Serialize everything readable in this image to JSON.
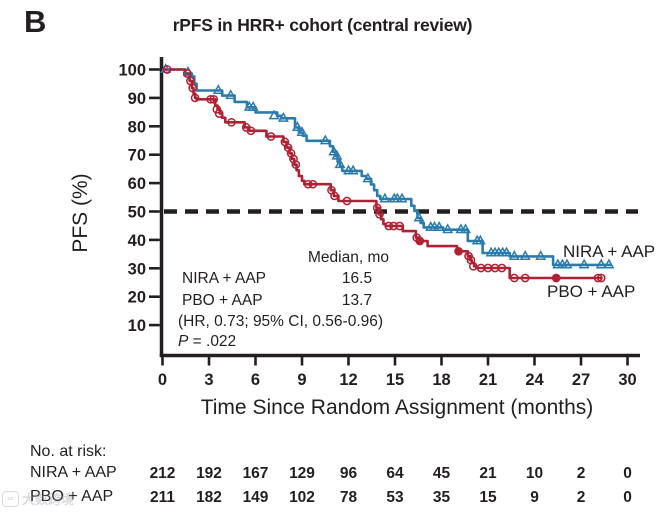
{
  "panel_label": "B",
  "title": "rPFS in HRR+ cohort (central review)",
  "watermark": {
    "icon": "infinity-logo-icon",
    "text": "大数跨境"
  },
  "colors": {
    "nira": "#2B7CAE",
    "pbo": "#AE2233",
    "axis": "#231F20",
    "background": "#FFFFFF"
  },
  "chart_data": {
    "type": "line",
    "subtype": "kaplan-meier-step",
    "title": "rPFS in HRR+ cohort (central review)",
    "xlabel": "Time Since Random Assignment (months)",
    "ylabel": "PFS (%)",
    "xlim": [
      0,
      30
    ],
    "ylim": [
      0,
      100
    ],
    "xticks": [
      0,
      3,
      6,
      9,
      12,
      15,
      18,
      21,
      24,
      27,
      30
    ],
    "yticks": [
      10,
      20,
      30,
      40,
      50,
      60,
      70,
      80,
      90,
      100
    ],
    "grid": false,
    "legend_position": "curve-end-labels",
    "reference_line": {
      "y": 50,
      "style": "dashed",
      "color": "#231F20"
    },
    "annotation": {
      "header": "Median, mo",
      "rows": [
        {
          "label": "NIRA + AAP",
          "value": "16.5"
        },
        {
          "label": "PBO + AAP",
          "value": "13.7"
        }
      ],
      "hr_line": "(HR, 0.73; 95% CI, 0.56-0.96)",
      "p_label": "P",
      "p_value": " = .022"
    },
    "series": [
      {
        "name": "NIRA + AAP",
        "color": "#2B7CAE",
        "marker": "open-triangle",
        "median_months": 16.5,
        "end_month": 29.0,
        "steps": [
          [
            0,
            100
          ],
          [
            1.45,
            98.6
          ],
          [
            1.9,
            97.5
          ],
          [
            2.05,
            95
          ],
          [
            2.2,
            92.6
          ],
          [
            3.85,
            90.8
          ],
          [
            4.65,
            88.6
          ],
          [
            5.45,
            86.7
          ],
          [
            6.0,
            84.9
          ],
          [
            7.4,
            83.7
          ],
          [
            7.65,
            82.8
          ],
          [
            8.55,
            79.6
          ],
          [
            8.8,
            77.8
          ],
          [
            9.05,
            76.7
          ],
          [
            9.3,
            74.9
          ],
          [
            10.8,
            73
          ],
          [
            11.0,
            71
          ],
          [
            11.15,
            69.5
          ],
          [
            11.3,
            67.5
          ],
          [
            11.45,
            65.8
          ],
          [
            11.6,
            64.3
          ],
          [
            12.85,
            62.5
          ],
          [
            13.15,
            61.5
          ],
          [
            13.45,
            59.5
          ],
          [
            13.65,
            57.5
          ],
          [
            13.85,
            55.5
          ],
          [
            14.05,
            54.4
          ],
          [
            16.05,
            52
          ],
          [
            16.25,
            50.2
          ],
          [
            16.45,
            47.7
          ],
          [
            16.65,
            46
          ],
          [
            16.85,
            44.4
          ],
          [
            18.1,
            43.6
          ],
          [
            19.7,
            39.6
          ],
          [
            20.65,
            35.4
          ],
          [
            22.4,
            34.2
          ],
          [
            25.2,
            31.2
          ]
        ],
        "censor_marks": [
          [
            0.2,
            100
          ],
          [
            1.65,
            99
          ],
          [
            3.6,
            92.6
          ],
          [
            4.4,
            90.8
          ],
          [
            5.6,
            86.7
          ],
          [
            5.85,
            86.7
          ],
          [
            7.2,
            83.7
          ],
          [
            7.8,
            82.8
          ],
          [
            8.7,
            79.6
          ],
          [
            9.0,
            77.8
          ],
          [
            10.5,
            74.9
          ],
          [
            11.05,
            71
          ],
          [
            11.25,
            69.5
          ],
          [
            11.45,
            66.5
          ],
          [
            12.0,
            64.3
          ],
          [
            12.3,
            64.3
          ],
          [
            13.25,
            61.5
          ],
          [
            14.35,
            54.4
          ],
          [
            14.95,
            54.4
          ],
          [
            15.15,
            54.4
          ],
          [
            15.45,
            54.4
          ],
          [
            16.55,
            47.7
          ],
          [
            17.3,
            44.4
          ],
          [
            17.55,
            44.4
          ],
          [
            17.85,
            44.4
          ],
          [
            18.4,
            43.6
          ],
          [
            19.25,
            43.6
          ],
          [
            19.55,
            43.6
          ],
          [
            20.3,
            39.6
          ],
          [
            20.5,
            39.6
          ],
          [
            21.2,
            35.4
          ],
          [
            21.45,
            35.4
          ],
          [
            21.7,
            35.4
          ],
          [
            21.95,
            35.4
          ],
          [
            22.2,
            35.4
          ],
          [
            22.7,
            34.2
          ],
          [
            23.4,
            34.2
          ],
          [
            24.4,
            34.2
          ],
          [
            25.5,
            31.2
          ],
          [
            25.8,
            31.2
          ],
          [
            26.1,
            31.2
          ],
          [
            27.2,
            31.2
          ],
          [
            28.3,
            31.2
          ],
          [
            28.8,
            31.2
          ]
        ]
      },
      {
        "name": "PBO + AAP",
        "color": "#AE2233",
        "marker": "open-circle",
        "median_months": 13.7,
        "end_month": 28.4,
        "steps": [
          [
            0,
            100
          ],
          [
            1.45,
            98.6
          ],
          [
            1.75,
            96
          ],
          [
            1.9,
            93.5
          ],
          [
            2.0,
            91.5
          ],
          [
            2.1,
            90
          ],
          [
            2.2,
            89.5
          ],
          [
            3.4,
            87.3
          ],
          [
            3.55,
            86
          ],
          [
            3.7,
            84.5
          ],
          [
            3.85,
            83
          ],
          [
            4.05,
            81.4
          ],
          [
            5.3,
            79.6
          ],
          [
            5.6,
            78.4
          ],
          [
            6.7,
            76.4
          ],
          [
            7.8,
            74.5
          ],
          [
            8.0,
            72.5
          ],
          [
            8.2,
            70.5
          ],
          [
            8.35,
            68.5
          ],
          [
            8.5,
            66.5
          ],
          [
            8.65,
            64.5
          ],
          [
            8.8,
            62.5
          ],
          [
            9.0,
            60.8
          ],
          [
            9.15,
            59.6
          ],
          [
            10.85,
            57.5
          ],
          [
            11.05,
            55.5
          ],
          [
            11.35,
            53.7
          ],
          [
            13.8,
            51.3
          ],
          [
            13.95,
            49
          ],
          [
            14.1,
            47.3
          ],
          [
            14.25,
            45.6
          ],
          [
            14.4,
            44.9
          ],
          [
            15.5,
            43.1
          ],
          [
            16.35,
            40.8
          ],
          [
            16.55,
            39.6
          ],
          [
            17.1,
            37.8
          ],
          [
            19.0,
            36
          ],
          [
            19.7,
            34.3
          ],
          [
            19.85,
            32.9
          ],
          [
            19.95,
            31.9
          ],
          [
            20.1,
            30.7
          ],
          [
            20.25,
            30.1
          ],
          [
            22.4,
            26.6
          ]
        ],
        "censor_marks": [
          [
            0.3,
            100
          ],
          [
            1.6,
            98.6
          ],
          [
            1.8,
            96
          ],
          [
            1.95,
            93.5
          ],
          [
            2.1,
            90
          ],
          [
            3.1,
            89.5
          ],
          [
            3.3,
            89.5
          ],
          [
            3.5,
            86
          ],
          [
            3.65,
            84.5
          ],
          [
            4.45,
            81.4
          ],
          [
            5.4,
            79.6
          ],
          [
            5.7,
            78.4
          ],
          [
            7.0,
            76.4
          ],
          [
            7.9,
            74.5
          ],
          [
            8.1,
            72.5
          ],
          [
            8.3,
            70.5
          ],
          [
            8.45,
            68.5
          ],
          [
            8.6,
            66.5
          ],
          [
            9.4,
            59.6
          ],
          [
            9.7,
            59.6
          ],
          [
            10.9,
            57.5
          ],
          [
            11.1,
            55.5
          ],
          [
            11.9,
            53.7
          ],
          [
            13.85,
            51.3
          ],
          [
            14.0,
            49
          ],
          [
            14.6,
            44.9
          ],
          [
            14.9,
            44.9
          ],
          [
            15.3,
            44.9
          ],
          [
            16.4,
            40.8
          ],
          [
            16.6,
            39.6,
            1
          ],
          [
            19.1,
            36,
            1
          ],
          [
            19.75,
            34.3
          ],
          [
            19.9,
            32.9
          ],
          [
            20.05,
            30.7
          ],
          [
            20.55,
            30.1
          ],
          [
            21.0,
            30.1
          ],
          [
            21.45,
            30.1
          ],
          [
            21.9,
            30.1
          ],
          [
            22.7,
            26.6
          ],
          [
            23.4,
            26.6
          ],
          [
            25.4,
            26.6,
            1
          ],
          [
            28.1,
            26.6
          ],
          [
            28.3,
            26.6
          ]
        ]
      }
    ],
    "at_risk": {
      "title": "No. at risk:",
      "months": [
        0,
        3,
        6,
        9,
        12,
        15,
        18,
        21,
        24,
        27,
        30
      ],
      "rows": [
        {
          "label": "NIRA + AAP",
          "values": [
            212,
            192,
            167,
            129,
            96,
            64,
            45,
            21,
            10,
            2,
            0
          ]
        },
        {
          "label": "PBO + AAP",
          "values": [
            211,
            182,
            149,
            102,
            78,
            53,
            35,
            15,
            9,
            2,
            0
          ]
        }
      ]
    }
  }
}
